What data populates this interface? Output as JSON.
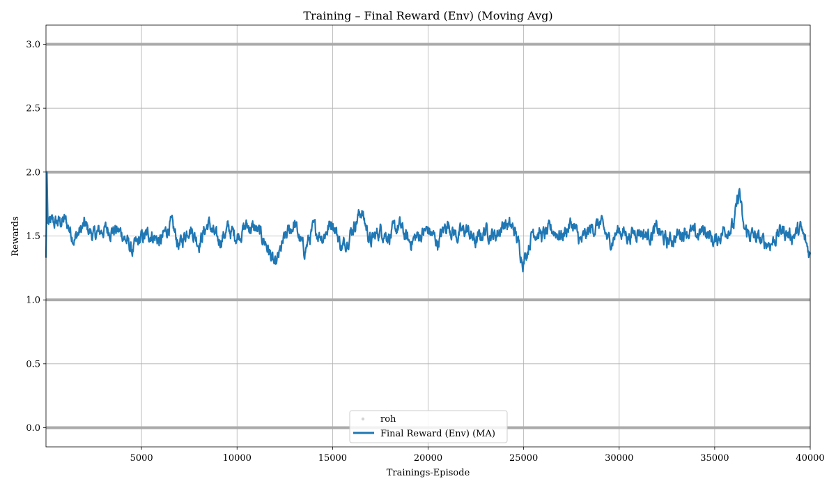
{
  "chart_data": {
    "type": "line",
    "title": "Training – Final Reward (Env) (Moving Avg)",
    "xlabel": "Trainings-Episode",
    "ylabel": "Rewards",
    "xlim": [
      0,
      40000
    ],
    "ylim": [
      -0.15,
      3.15
    ],
    "xticks": [
      5000,
      10000,
      15000,
      20000,
      25000,
      30000,
      35000,
      40000
    ],
    "xtick_labels": [
      "5000",
      "10000",
      "15000",
      "20000",
      "25000",
      "30000",
      "35000",
      "40000"
    ],
    "yticks": [
      0.0,
      0.5,
      1.0,
      1.5,
      2.0,
      2.5,
      3.0
    ],
    "ytick_labels": [
      "0.0",
      "0.5",
      "1.0",
      "1.5",
      "2.0",
      "2.5",
      "3.0"
    ],
    "grid": true,
    "legend_position": "bottom-center",
    "colors": {
      "ma_line": "#1f77b4",
      "raw_points": "#aaaaaa",
      "grid": "#b0b0b0"
    },
    "raw_levels": [
      0,
      1,
      2,
      3
    ],
    "series": [
      {
        "name": "roh",
        "kind": "scatter",
        "note_levels": [
          0,
          1,
          2,
          3
        ]
      },
      {
        "name": "Final Reward (Env) (MA)",
        "kind": "line",
        "x": [
          0,
          50,
          100,
          500,
          1000,
          1500,
          2000,
          2500,
          3000,
          3500,
          4000,
          4500,
          5000,
          5500,
          6000,
          6500,
          7000,
          7500,
          8000,
          8500,
          9000,
          9500,
          10000,
          10500,
          11000,
          11500,
          12000,
          12500,
          13000,
          13500,
          14000,
          14500,
          15000,
          15500,
          16000,
          16500,
          17000,
          17500,
          18000,
          18500,
          19000,
          19500,
          20000,
          20500,
          21000,
          21500,
          22000,
          22500,
          23000,
          23500,
          24000,
          24500,
          25000,
          25500,
          26000,
          26500,
          27000,
          27500,
          28000,
          28500,
          29000,
          29500,
          30000,
          30500,
          31000,
          31500,
          32000,
          32500,
          33000,
          33500,
          34000,
          34500,
          35000,
          35500,
          36000,
          36300,
          36500,
          37000,
          37500,
          38000,
          38500,
          39000,
          39500,
          40000
        ],
        "y": [
          1.33,
          2.0,
          1.6,
          1.6,
          1.62,
          1.48,
          1.58,
          1.5,
          1.55,
          1.55,
          1.52,
          1.38,
          1.48,
          1.52,
          1.45,
          1.6,
          1.42,
          1.58,
          1.45,
          1.6,
          1.45,
          1.55,
          1.5,
          1.58,
          1.55,
          1.45,
          1.25,
          1.48,
          1.6,
          1.38,
          1.55,
          1.5,
          1.62,
          1.4,
          1.55,
          1.7,
          1.45,
          1.55,
          1.5,
          1.58,
          1.45,
          1.5,
          1.55,
          1.45,
          1.6,
          1.5,
          1.55,
          1.45,
          1.55,
          1.5,
          1.6,
          1.55,
          1.3,
          1.55,
          1.5,
          1.55,
          1.5,
          1.6,
          1.45,
          1.55,
          1.6,
          1.45,
          1.55,
          1.5,
          1.55,
          1.5,
          1.55,
          1.45,
          1.5,
          1.55,
          1.5,
          1.55,
          1.45,
          1.55,
          1.58,
          1.86,
          1.55,
          1.5,
          1.45,
          1.45,
          1.55,
          1.5,
          1.55,
          1.35
        ]
      }
    ]
  }
}
